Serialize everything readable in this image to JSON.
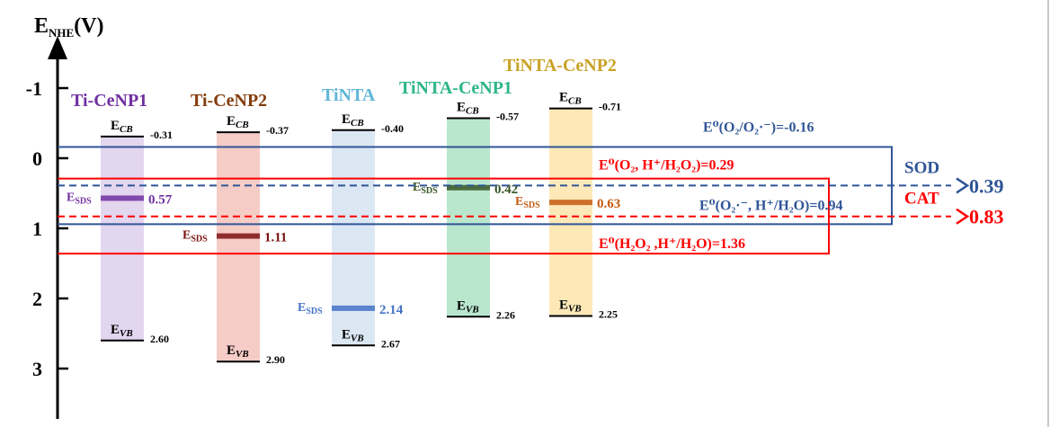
{
  "axis": {
    "label_main": "E",
    "label_sub": "NHE",
    "label_unit": "(V)",
    "ticks": [
      {
        "value": -1,
        "label": "-1"
      },
      {
        "value": 0,
        "label": "0"
      },
      {
        "value": 1,
        "label": "1"
      },
      {
        "value": 2,
        "label": "2"
      },
      {
        "value": 3,
        "label": "3"
      }
    ]
  },
  "materials": [
    {
      "name": "Ti-CeNP1",
      "name_color": "#7030a0",
      "band_color": "#e2d4ee",
      "cb": -0.31,
      "cb_label": "-0.31",
      "vb": 2.6,
      "vb_label": "2.60",
      "sds": 0.57,
      "sds_label": "0.57",
      "sds_color": "#7030a0"
    },
    {
      "name": "Ti-CeNP2",
      "name_color": "#843c0c",
      "band_color": "#f5c9c4",
      "cb": -0.37,
      "cb_label": "-0.37",
      "vb": 2.9,
      "vb_label": "2.90",
      "sds": 1.11,
      "sds_label": "1.11",
      "sds_color": "#7b1111"
    },
    {
      "name": "TiNTA",
      "name_color": "#5fb6d8",
      "band_color": "#dae6f3",
      "cb": -0.4,
      "cb_label": "-0.40",
      "vb": 2.67,
      "vb_label": "2.67",
      "sds": 2.14,
      "sds_label": "2.14",
      "sds_color": "#4472c4"
    },
    {
      "name": "TiNTA-CeNP1",
      "name_color": "#2eb58a",
      "band_color": "#b5e6cb",
      "cb": -0.57,
      "cb_label": "-0.57",
      "vb": 2.26,
      "vb_label": "2.26",
      "sds": 0.42,
      "sds_label": "0.42",
      "sds_color": "#375623"
    },
    {
      "name": "TiNTA-CeNP2",
      "name_color": "#c9a227",
      "band_color": "#fde8b4",
      "cb": -0.71,
      "cb_label": "-0.71",
      "vb": 2.25,
      "vb_label": "2.25",
      "sds": 0.63,
      "sds_label": "0.63",
      "sds_color": "#c55a11"
    }
  ],
  "level_labels": {
    "cb_main": "E",
    "cb_sub": "CB",
    "vb_main": "E",
    "vb_sub": "VB",
    "sds_main": "E",
    "sds_sub": "SDS"
  },
  "potentials": [
    {
      "id": "o2_superoxide",
      "value": -0.16,
      "color": "#2f5597",
      "text": "E⁰(O₂/O₂·⁻)=-0.16"
    },
    {
      "id": "o2_h2o2",
      "value": 0.29,
      "color": "#ff0000",
      "text": "E⁰(O₂, H⁺/H₂O₂)=0.29"
    },
    {
      "id": "superoxide_h2o",
      "value": 0.94,
      "color": "#2f5597",
      "text": "E⁰(O₂·⁻, H⁺/H₂O)=0.94"
    },
    {
      "id": "h2o2_h2o",
      "value": 1.36,
      "color": "#ff0000",
      "text": "E⁰(H₂O₂ ,H⁺/H₂O)=1.36"
    }
  ],
  "mechanisms": [
    {
      "name": "SOD",
      "value": 0.39,
      "label": "0.39",
      "color": "#2f5597"
    },
    {
      "name": "CAT",
      "value": 0.83,
      "label": "0.83",
      "color": "#ff0000"
    }
  ],
  "colors": {
    "axis": "#000000",
    "level": "#000000"
  }
}
